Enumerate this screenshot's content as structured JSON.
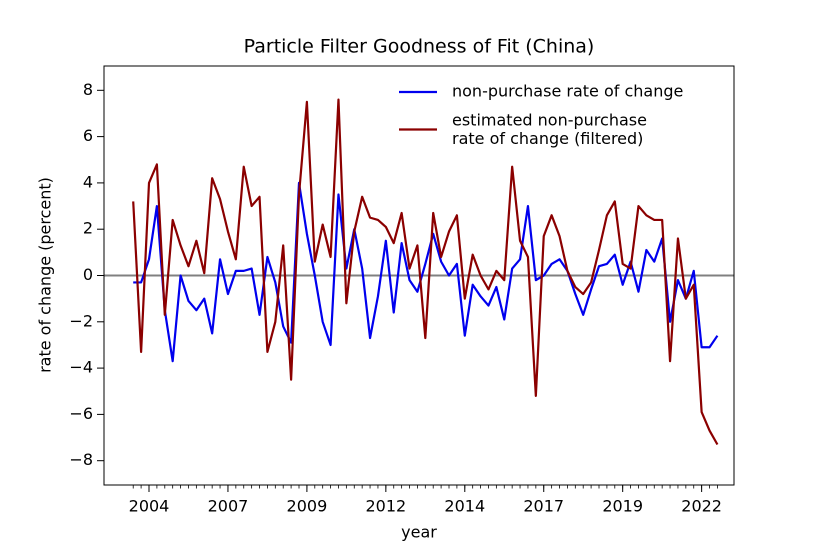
{
  "chart_data": {
    "type": "line",
    "title": "Particle Filter Goodness of Fit (China)",
    "xlabel": "year",
    "ylabel": "rate of change (percent)",
    "x": [
      0,
      1,
      2,
      3,
      4,
      5,
      6,
      7,
      8,
      9,
      10,
      11,
      12,
      13,
      14,
      15,
      16,
      17,
      18,
      19,
      20,
      21,
      22,
      23,
      24,
      25,
      26,
      27,
      28,
      29,
      30,
      31,
      32,
      33,
      34,
      35,
      36,
      37,
      38,
      39,
      40,
      41,
      42,
      43,
      44,
      45,
      46,
      47,
      48,
      49,
      50,
      51,
      52,
      53,
      54,
      55,
      56,
      57,
      58,
      59,
      60,
      61,
      62,
      63,
      64,
      65,
      66,
      67,
      68,
      69,
      70,
      71,
      72,
      73,
      74
    ],
    "series": [
      {
        "name": "non-purchase rate of change",
        "color": "#0000ee",
        "values": [
          -0.3,
          -0.3,
          0.7,
          3.0,
          -1.5,
          -3.7,
          0.0,
          -1.1,
          -1.5,
          -1.0,
          -2.5,
          0.7,
          -0.8,
          0.2,
          0.2,
          0.3,
          -1.7,
          0.8,
          -0.3,
          -2.2,
          -2.9,
          4.0,
          1.8,
          0.0,
          -2.0,
          -3.0,
          3.5,
          0.3,
          2.0,
          0.3,
          -2.7,
          -0.9,
          1.5,
          -1.6,
          1.4,
          -0.2,
          -0.7,
          0.5,
          1.8,
          0.6,
          0.0,
          0.5,
          -2.6,
          -0.4,
          -0.9,
          -1.3,
          -0.5,
          -1.9,
          0.3,
          0.7,
          3.0,
          -0.2,
          0.0,
          0.5,
          0.7,
          0.2,
          -0.8,
          -1.7,
          -0.6,
          0.4,
          0.5,
          0.9,
          -0.4,
          0.6,
          -0.7,
          1.1,
          0.6,
          1.6,
          -2.0,
          -0.2,
          -1.0,
          0.2,
          -3.1,
          -3.1,
          -2.6
        ]
      },
      {
        "name": "estimated non-purchase\nrate of change (filtered)",
        "color": "#8b0000",
        "values": [
          3.2,
          -3.3,
          4.0,
          4.8,
          -1.7,
          2.4,
          1.3,
          0.4,
          1.5,
          0.1,
          4.2,
          3.3,
          1.9,
          0.7,
          4.7,
          3.0,
          3.4,
          -3.3,
          -2.0,
          1.3,
          -4.5,
          3.5,
          7.5,
          0.6,
          2.2,
          0.8,
          7.6,
          -1.2,
          1.9,
          3.4,
          2.5,
          2.4,
          2.1,
          1.4,
          2.7,
          0.3,
          1.3,
          -2.7,
          2.7,
          0.8,
          1.9,
          2.6,
          -1.0,
          0.9,
          0.0,
          -0.6,
          0.2,
          -0.2,
          4.7,
          1.5,
          0.8,
          -5.2,
          1.7,
          2.6,
          1.7,
          0.2,
          -0.5,
          -0.8,
          -0.3,
          1.1,
          2.6,
          3.2,
          0.5,
          0.3,
          3.0,
          2.6,
          2.4,
          2.4,
          -3.7,
          1.6,
          -1.0,
          -0.4,
          -5.9,
          -6.7,
          -7.3
        ]
      }
    ],
    "xlim": [
      -3.7,
      76.1
    ],
    "ylim": [
      -9.05,
      9.05
    ],
    "xticks": [
      {
        "value": 2,
        "label": "2004"
      },
      {
        "value": 12,
        "label": "2007"
      },
      {
        "value": 22,
        "label": "2009"
      },
      {
        "value": 32,
        "label": "2012"
      },
      {
        "value": 42,
        "label": "2014"
      },
      {
        "value": 52,
        "label": "2017"
      },
      {
        "value": 62,
        "label": "2019"
      },
      {
        "value": 72,
        "label": "2022"
      }
    ],
    "yticks": [
      {
        "value": -8,
        "label": "−8"
      },
      {
        "value": -6,
        "label": "−6"
      },
      {
        "value": -4,
        "label": "−4"
      },
      {
        "value": -2,
        "label": "−2"
      },
      0,
      2,
      4,
      6,
      8
    ],
    "hline": {
      "value": 0,
      "color": "#808080"
    },
    "legend": "upper right",
    "grid": false
  }
}
